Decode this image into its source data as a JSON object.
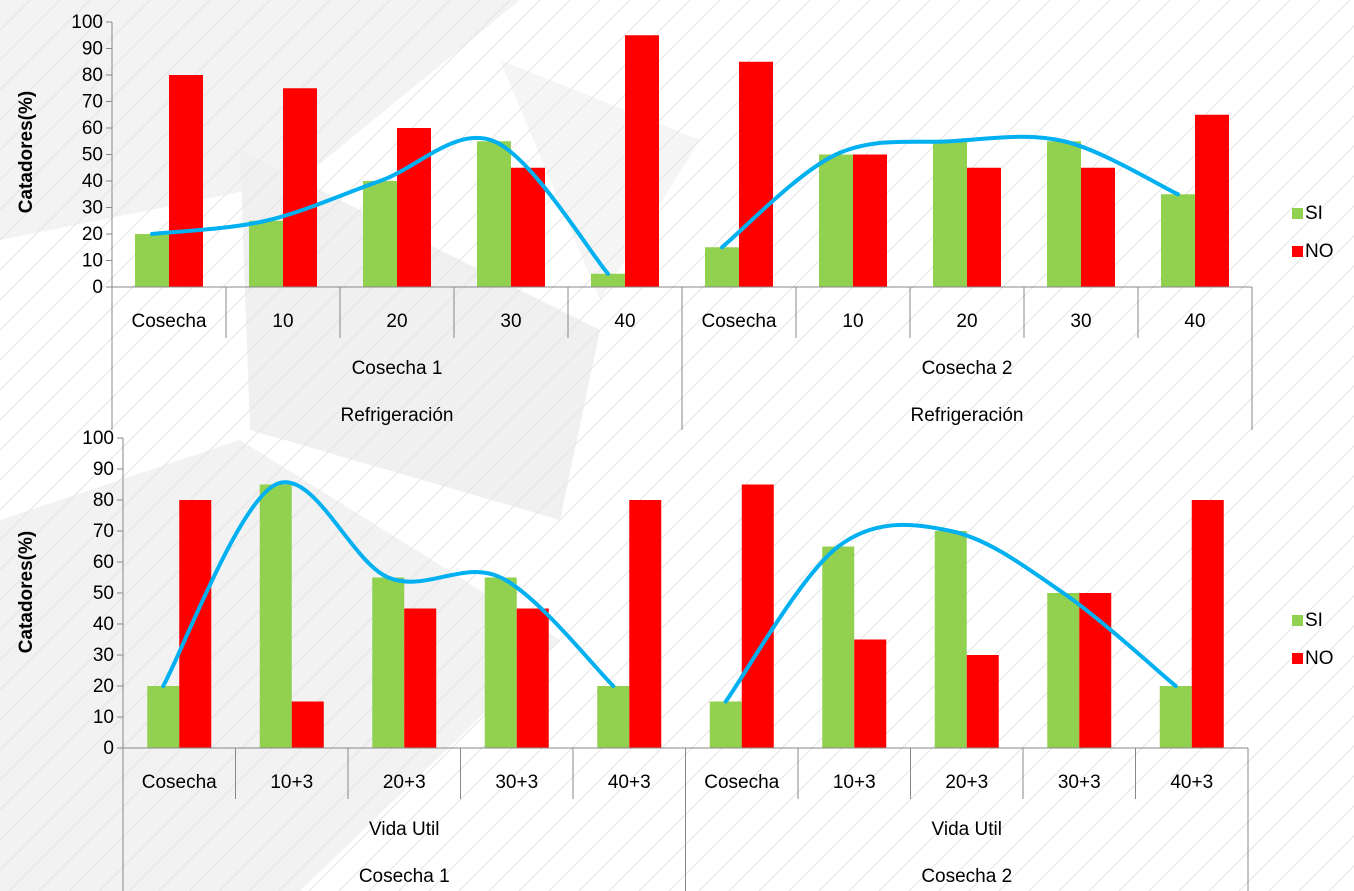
{
  "chart_data": [
    {
      "type": "bar",
      "ylabel": "Catadores(%)",
      "ylim": [
        0,
        100
      ],
      "yticks": [
        0,
        10,
        20,
        30,
        40,
        50,
        60,
        70,
        80,
        90,
        100
      ],
      "categories": [
        "Cosecha",
        "10",
        "20",
        "30",
        "40",
        "Cosecha",
        "10",
        "20",
        "30",
        "40"
      ],
      "groups_level1": [
        "Cosecha 1",
        "Cosecha 2"
      ],
      "groups_level2": [
        "Refrigeración",
        "Refrigeración"
      ],
      "series": [
        {
          "name": "SI",
          "color": "#92d050",
          "values": [
            20,
            25,
            40,
            55,
            5,
            15,
            50,
            55,
            55,
            35
          ]
        },
        {
          "name": "NO",
          "color": "#ff0000",
          "values": [
            80,
            75,
            60,
            45,
            95,
            85,
            50,
            45,
            45,
            65
          ]
        }
      ],
      "trend_color": "#00b0f0",
      "legend": "right",
      "grid": false
    },
    {
      "type": "bar",
      "ylabel": "Catadores(%)",
      "ylim": [
        0,
        100
      ],
      "yticks": [
        0,
        10,
        20,
        30,
        40,
        50,
        60,
        70,
        80,
        90,
        100
      ],
      "categories": [
        "Cosecha",
        "10+3",
        "20+3",
        "30+3",
        "40+3",
        "Cosecha",
        "10+3",
        "20+3",
        "30+3",
        "40+3"
      ],
      "groups_level1": [
        "Vida Util",
        "Vida Util"
      ],
      "groups_level2": [
        "Cosecha 1",
        "Cosecha 2"
      ],
      "series": [
        {
          "name": "SI",
          "color": "#92d050",
          "values": [
            20,
            85,
            55,
            55,
            20,
            15,
            65,
            70,
            50,
            20
          ]
        },
        {
          "name": "NO",
          "color": "#ff0000",
          "values": [
            80,
            15,
            45,
            45,
            80,
            85,
            35,
            30,
            50,
            80
          ]
        }
      ],
      "trend_color": "#00b0f0",
      "legend": "right",
      "grid": false
    }
  ]
}
